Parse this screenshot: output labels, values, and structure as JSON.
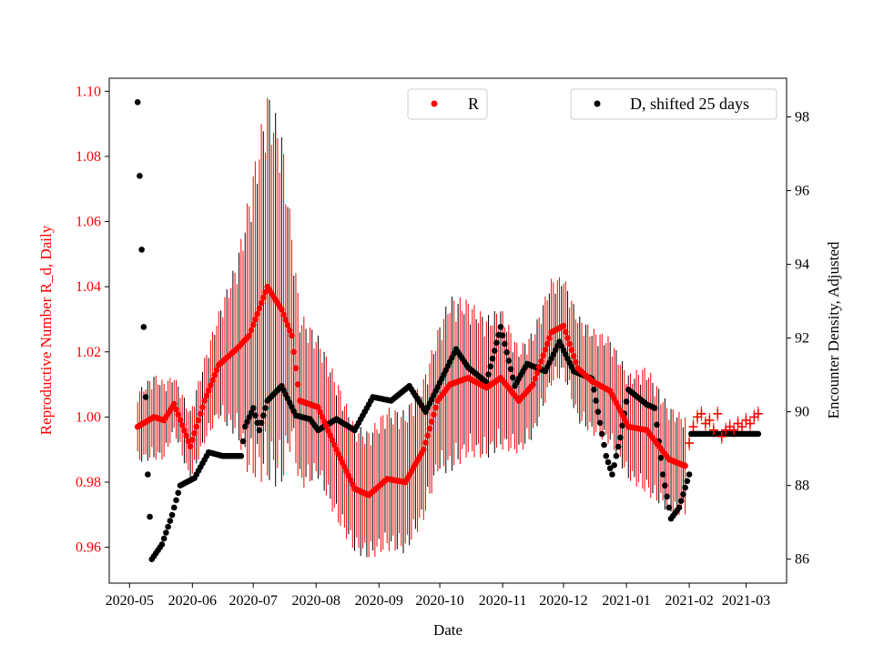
{
  "chart_data": {
    "type": "scatter",
    "xlabel": "Date",
    "ylabel_left": "Reproductive Number R_d, Daily",
    "ylabel_right": "Encounter Density, Adjusted",
    "xlim": [
      "2020-04-21",
      "2021-03-21"
    ],
    "ylim_left": [
      0.949,
      1.104
    ],
    "ylim_right": [
      85.35,
      99.05
    ],
    "x_ticks": [
      "2020-05",
      "2020-06",
      "2020-07",
      "2020-08",
      "2020-09",
      "2020-10",
      "2020-11",
      "2020-12",
      "2021-01",
      "2021-02",
      "2021-03"
    ],
    "y_ticks_left": [
      "0.96",
      "0.98",
      "1.00",
      "1.02",
      "1.04",
      "1.06",
      "1.08",
      "1.10"
    ],
    "y_ticks_right": [
      "86",
      "88",
      "90",
      "92",
      "94",
      "96",
      "98"
    ],
    "colors": {
      "R": "#ff0000",
      "D": "#000000",
      "left_axis": "#ff0000"
    },
    "legend": [
      {
        "label": "R",
        "placement": "top-center"
      },
      {
        "label": "D, shifted 25 days",
        "placement": "top-right"
      }
    ],
    "series": [
      {
        "name": "R",
        "axis": "left",
        "marker": "dot",
        "error_bars": true,
        "points": [
          [
            "2020-05-05",
            0.997,
            0.01
          ],
          [
            "2020-05-13",
            1.0,
            0.012
          ],
          [
            "2020-05-18",
            0.999,
            0.011
          ],
          [
            "2020-05-23",
            1.004,
            0.008
          ],
          [
            "2020-05-31",
            0.991,
            0.01
          ],
          [
            "2020-06-07",
            1.005,
            0.012
          ],
          [
            "2020-06-14",
            1.016,
            0.015
          ],
          [
            "2020-06-23",
            1.021,
            0.025
          ],
          [
            "2020-06-29",
            1.025,
            0.04
          ],
          [
            "2020-07-08",
            1.04,
            0.055
          ],
          [
            "2020-07-15",
            1.033,
            0.05
          ],
          [
            "2020-07-20",
            1.025,
            0.03
          ],
          [
            "2020-07-24",
            1.005,
            0.025
          ],
          [
            "2020-08-02",
            1.003,
            0.02
          ],
          [
            "2020-08-11",
            0.99,
            0.02
          ],
          [
            "2020-08-20",
            0.978,
            0.018
          ],
          [
            "2020-08-27",
            0.976,
            0.018
          ],
          [
            "2020-09-05",
            0.981,
            0.02
          ],
          [
            "2020-09-14",
            0.98,
            0.02
          ],
          [
            "2020-09-23",
            0.99,
            0.02
          ],
          [
            "2020-09-30",
            1.005,
            0.02
          ],
          [
            "2020-10-06",
            1.01,
            0.025
          ],
          [
            "2020-10-15",
            1.012,
            0.022
          ],
          [
            "2020-10-24",
            1.009,
            0.02
          ],
          [
            "2020-10-31",
            1.012,
            0.02
          ],
          [
            "2020-11-09",
            1.005,
            0.015
          ],
          [
            "2020-11-16",
            1.01,
            0.015
          ],
          [
            "2020-11-25",
            1.026,
            0.015
          ],
          [
            "2020-12-01",
            1.028,
            0.014
          ],
          [
            "2020-12-08",
            1.015,
            0.015
          ],
          [
            "2020-12-15",
            1.011,
            0.015
          ],
          [
            "2020-12-24",
            1.008,
            0.015
          ],
          [
            "2021-01-02",
            0.997,
            0.015
          ],
          [
            "2021-01-11",
            0.996,
            0.018
          ],
          [
            "2021-01-22",
            0.987,
            0.015
          ],
          [
            "2021-01-30",
            0.985,
            0.014
          ]
        ]
      },
      {
        "name": "R (recent)",
        "axis": "left",
        "marker": "plus",
        "start": "2021-02-01",
        "step_days": 2,
        "values": [
          0.992,
          0.997,
          1.0,
          1.001,
          0.998,
          0.999,
          0.996,
          1.001,
          0.994,
          0.996,
          0.997,
          0.996,
          0.998,
          0.997,
          0.999,
          0.998,
          1.0,
          1.001
        ]
      },
      {
        "name": "D, shifted 25 days",
        "axis": "right",
        "marker": "dot",
        "points": [
          [
            "2020-05-05",
            98.4
          ],
          [
            "2020-05-06",
            96.4
          ],
          [
            "2020-05-07",
            94.4
          ],
          [
            "2020-05-08",
            92.3
          ],
          [
            "2020-05-09",
            90.4
          ],
          [
            "2020-05-10",
            88.3
          ],
          [
            "2020-05-12",
            86.0
          ],
          [
            "2020-05-17",
            86.4
          ],
          [
            "2020-05-22",
            87.2
          ],
          [
            "2020-05-26",
            88.0
          ],
          [
            "2020-06-02",
            88.2
          ],
          [
            "2020-06-09",
            88.9
          ],
          [
            "2020-06-16",
            88.8
          ],
          [
            "2020-06-25",
            88.8
          ],
          [
            "2020-06-27",
            89.6
          ],
          [
            "2020-07-01",
            90.1
          ],
          [
            "2020-07-04",
            89.5
          ],
          [
            "2020-07-08",
            90.3
          ],
          [
            "2020-07-15",
            90.7
          ],
          [
            "2020-07-22",
            89.9
          ],
          [
            "2020-07-29",
            89.8
          ],
          [
            "2020-08-02",
            89.5
          ],
          [
            "2020-08-11",
            89.8
          ],
          [
            "2020-08-20",
            89.5
          ],
          [
            "2020-08-29",
            90.4
          ],
          [
            "2020-09-07",
            90.3
          ],
          [
            "2020-09-16",
            90.7
          ],
          [
            "2020-09-24",
            90.0
          ],
          [
            "2020-10-02",
            90.9
          ],
          [
            "2020-10-09",
            91.7
          ],
          [
            "2020-10-15",
            91.2
          ],
          [
            "2020-10-24",
            90.8
          ],
          [
            "2020-10-31",
            92.3
          ],
          [
            "2020-11-07",
            90.7
          ],
          [
            "2020-11-13",
            91.3
          ],
          [
            "2020-11-22",
            91.1
          ],
          [
            "2020-11-29",
            91.9
          ],
          [
            "2020-12-06",
            91.1
          ],
          [
            "2020-12-15",
            90.9
          ],
          [
            "2020-12-22",
            88.8
          ],
          [
            "2020-12-25",
            88.3
          ],
          [
            "2020-12-29",
            89.3
          ],
          [
            "2021-01-02",
            90.6
          ],
          [
            "2021-01-11",
            90.2
          ],
          [
            "2021-01-15",
            90.1
          ],
          [
            "2021-01-19",
            88.3
          ],
          [
            "2021-01-23",
            87.1
          ],
          [
            "2021-01-27",
            87.4
          ],
          [
            "2021-02-01",
            88.3
          ],
          [
            "2021-02-02",
            89.4
          ],
          [
            "2021-03-07",
            89.4
          ]
        ]
      }
    ]
  }
}
